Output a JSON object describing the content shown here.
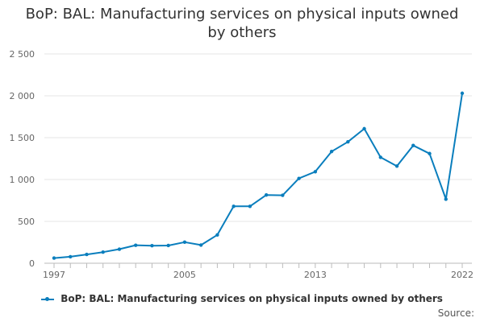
{
  "title_line1": "BoP: BAL: Manufacturing services on physical inputs owned",
  "title_line2": "by others",
  "source": "Source:",
  "chart_data": {
    "type": "line",
    "title": "BoP: BAL: Manufacturing services on physical inputs owned by others",
    "xlabel": "",
    "ylabel": "",
    "ylim": [
      0,
      2500
    ],
    "yticks": [
      0,
      500,
      1000,
      1500,
      2000,
      2500
    ],
    "ytick_labels": [
      "0",
      "500",
      "1 000",
      "1 500",
      "2 000",
      "2 500"
    ],
    "xtick_labels": [
      "1997",
      "2005",
      "2013",
      "2022"
    ],
    "grid": true,
    "legend_position": "bottom",
    "color": "#0a7ebd",
    "series": [
      {
        "name": "BoP: BAL: Manufacturing services on physical inputs owned by others",
        "x": [
          1997,
          1998,
          1999,
          2000,
          2001,
          2002,
          2003,
          2004,
          2005,
          2006,
          2007,
          2008,
          2009,
          2010,
          2011,
          2012,
          2013,
          2014,
          2015,
          2016,
          2017,
          2018,
          2019,
          2020,
          2021,
          2022
        ],
        "values": [
          62,
          78,
          105,
          133,
          168,
          215,
          210,
          212,
          252,
          217,
          338,
          680,
          680,
          815,
          812,
          1013,
          1093,
          1335,
          1450,
          1607,
          1265,
          1160,
          1407,
          1310,
          765,
          2030
        ]
      }
    ]
  }
}
